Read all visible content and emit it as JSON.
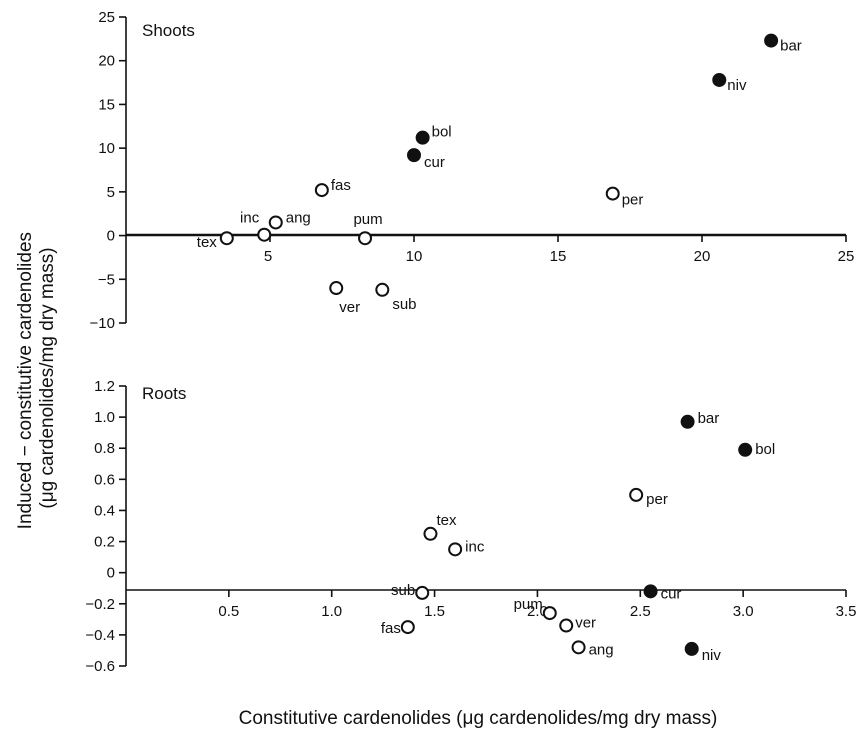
{
  "chart_data": [
    {
      "type": "scatter",
      "title": "Shoots",
      "xlabel": "Constitutive cardenolides (μg cardenolides/mg dry mass)",
      "ylabel": "Induced − constitutive cardenolides (μg cardenolides/mg dry mass)",
      "xlim": [
        0,
        25
      ],
      "ylim": [
        -10,
        25
      ],
      "xticks": [
        5,
        10,
        15,
        20,
        25
      ],
      "yticks": [
        -10,
        -5,
        0,
        5,
        10,
        15,
        20,
        25
      ],
      "grid": false,
      "points": [
        {
          "label": "bar",
          "x": 22.4,
          "y": 22.3,
          "filled": true
        },
        {
          "label": "niv",
          "x": 20.6,
          "y": 17.8,
          "filled": true
        },
        {
          "label": "bol",
          "x": 10.3,
          "y": 11.2,
          "filled": true
        },
        {
          "label": "cur",
          "x": 10.0,
          "y": 9.2,
          "filled": true
        },
        {
          "label": "fas",
          "x": 6.8,
          "y": 5.2,
          "filled": false
        },
        {
          "label": "per",
          "x": 16.9,
          "y": 4.8,
          "filled": false
        },
        {
          "label": "inc",
          "x": 4.8,
          "y": 0.1,
          "filled": false
        },
        {
          "label": "ang",
          "x": 5.2,
          "y": 1.5,
          "filled": false
        },
        {
          "label": "pum",
          "x": 8.3,
          "y": -0.3,
          "filled": false
        },
        {
          "label": "tex",
          "x": 3.5,
          "y": -0.3,
          "filled": false
        },
        {
          "label": "ver",
          "x": 7.3,
          "y": -6.0,
          "filled": false
        },
        {
          "label": "sub",
          "x": 8.9,
          "y": -6.2,
          "filled": false
        }
      ]
    },
    {
      "type": "scatter",
      "title": "Roots",
      "xlabel": "Constitutive cardenolides (μg cardenolides/mg dry mass)",
      "ylabel": "Induced − constitutive cardenolides (μg cardenolides/mg dry mass)",
      "xlim": [
        0,
        3.5
      ],
      "ylim": [
        -0.6,
        1.2
      ],
      "xticks": [
        0.5,
        1.0,
        1.5,
        2.0,
        2.5,
        3.0,
        3.5
      ],
      "yticks": [
        -0.6,
        -0.4,
        -0.2,
        0,
        0.2,
        0.4,
        0.6,
        0.8,
        1.0,
        1.2
      ],
      "grid": false,
      "points": [
        {
          "label": "bar",
          "x": 2.73,
          "y": 0.97,
          "filled": true
        },
        {
          "label": "bol",
          "x": 3.01,
          "y": 0.79,
          "filled": true
        },
        {
          "label": "per",
          "x": 2.48,
          "y": 0.5,
          "filled": false
        },
        {
          "label": "tex",
          "x": 1.48,
          "y": 0.25,
          "filled": false
        },
        {
          "label": "inc",
          "x": 1.6,
          "y": 0.15,
          "filled": false
        },
        {
          "label": "cur",
          "x": 2.55,
          "y": -0.12,
          "filled": true
        },
        {
          "label": "sub",
          "x": 1.44,
          "y": -0.13,
          "filled": false
        },
        {
          "label": "pum",
          "x": 2.06,
          "y": -0.26,
          "filled": false
        },
        {
          "label": "ver",
          "x": 2.14,
          "y": -0.34,
          "filled": false
        },
        {
          "label": "fas",
          "x": 1.37,
          "y": -0.35,
          "filled": false
        },
        {
          "label": "ang",
          "x": 2.2,
          "y": -0.48,
          "filled": false
        },
        {
          "label": "niv",
          "x": 2.75,
          "y": -0.49,
          "filled": true
        }
      ]
    }
  ]
}
